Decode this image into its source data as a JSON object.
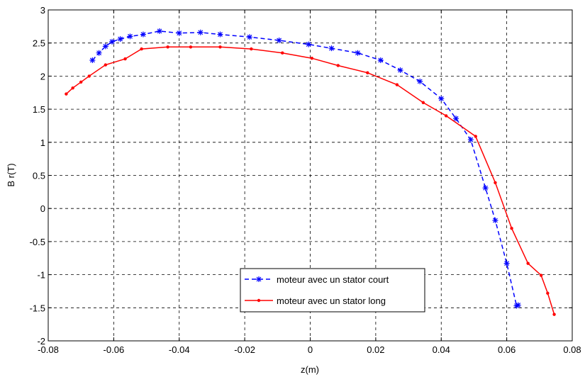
{
  "chart_data": {
    "type": "line",
    "title": "",
    "xlabel": "z(m)",
    "ylabel": "B r(T)",
    "xlim": [
      -0.08,
      0.08
    ],
    "ylim": [
      -2,
      3
    ],
    "xticks": [
      -0.08,
      -0.06,
      -0.04,
      -0.02,
      0,
      0.02,
      0.04,
      0.06,
      0.08
    ],
    "yticks": [
      -2,
      -1.5,
      -1,
      -0.5,
      0,
      0.5,
      1,
      1.5,
      2,
      2.5,
      3
    ],
    "xtick_labels": [
      "-0.08",
      "-0.06",
      "-0.04",
      "-0.02",
      "0",
      "0.02",
      "0.04",
      "0.06",
      "0.08"
    ],
    "ytick_labels": [
      "-2",
      "-1.5",
      "-1",
      "-0.5",
      "0",
      "0.5",
      "1",
      "1.5",
      "2",
      "2.5",
      "3"
    ],
    "grid": true,
    "legend_position": "bottom-center",
    "series": [
      {
        "name": "moteur avec un stator court",
        "color": "#0000ff",
        "line_style": "dashed",
        "marker": "star",
        "x": [
          -0.0665,
          -0.0645,
          -0.0625,
          -0.0605,
          -0.058,
          -0.055,
          -0.051,
          -0.046,
          -0.04,
          -0.0335,
          -0.0275,
          -0.0185,
          -0.0095,
          -0.0005,
          0.0065,
          0.0145,
          0.0215,
          0.0275,
          0.0335,
          0.04,
          0.0445,
          0.049,
          0.0535,
          0.0565,
          0.06,
          0.063,
          0.0635
        ],
        "y": [
          2.24,
          2.35,
          2.45,
          2.52,
          2.56,
          2.6,
          2.63,
          2.68,
          2.65,
          2.66,
          2.63,
          2.59,
          2.54,
          2.48,
          2.42,
          2.35,
          2.24,
          2.09,
          1.92,
          1.66,
          1.36,
          1.04,
          0.31,
          -0.18,
          -0.83,
          -1.47,
          -1.46
        ]
      },
      {
        "name": "moteur avec un stator long",
        "color": "#ff0000",
        "line_style": "solid",
        "marker": "dot",
        "x": [
          -0.0745,
          -0.0725,
          -0.07,
          -0.0675,
          -0.0625,
          -0.0565,
          -0.0515,
          -0.0435,
          -0.0365,
          -0.0275,
          -0.018,
          -0.0085,
          0.0005,
          0.0085,
          0.0175,
          0.0265,
          0.0345,
          0.0415,
          0.0505,
          0.0565,
          0.0615,
          0.0665,
          0.0705,
          0.0725,
          0.0745
        ],
        "y": [
          1.73,
          1.82,
          1.91,
          2.0,
          2.17,
          2.26,
          2.41,
          2.44,
          2.44,
          2.44,
          2.41,
          2.35,
          2.27,
          2.16,
          2.05,
          1.87,
          1.6,
          1.4,
          1.09,
          0.39,
          -0.3,
          -0.83,
          -1.01,
          -1.28,
          -1.6
        ]
      }
    ]
  }
}
